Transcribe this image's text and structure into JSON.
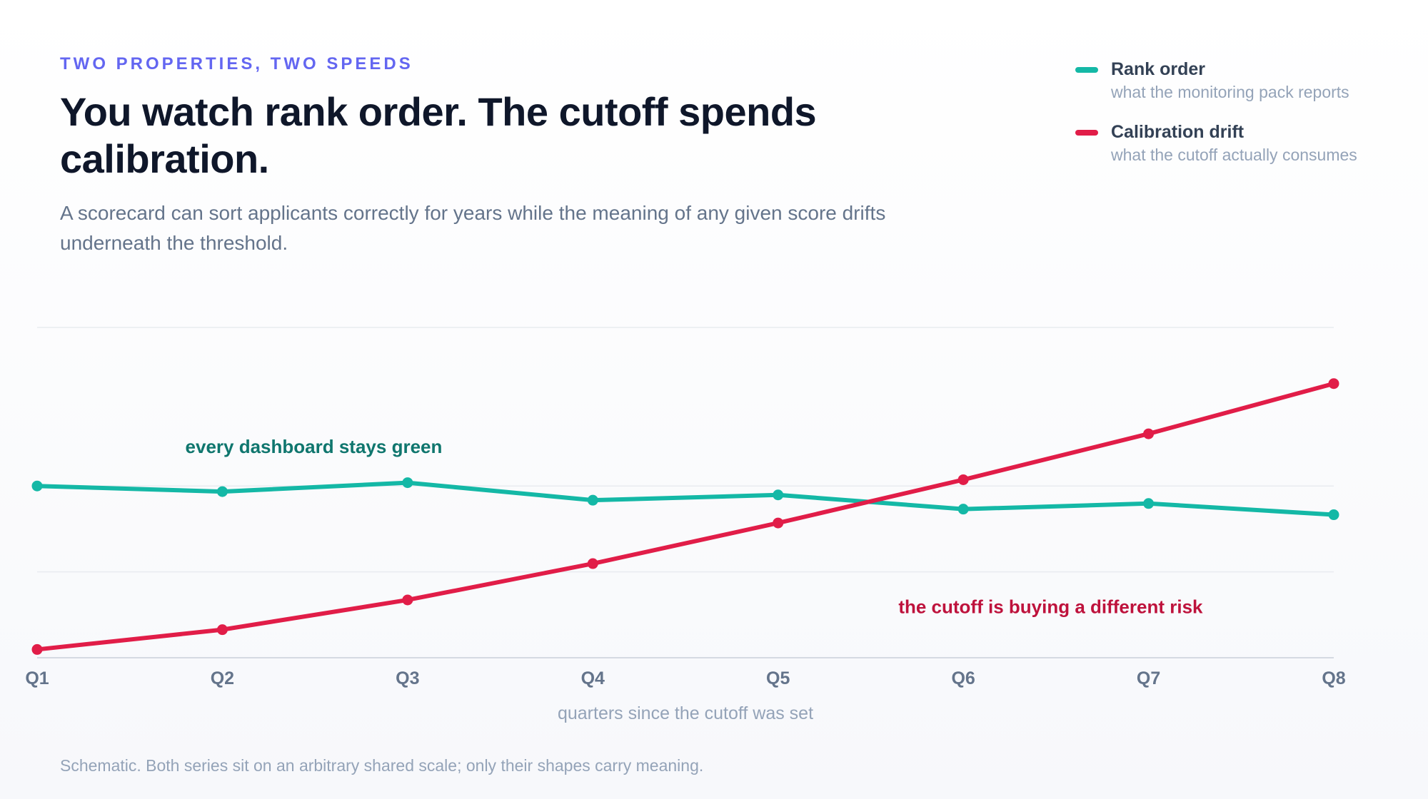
{
  "header": {
    "eyebrow": "TWO PROPERTIES, TWO SPEEDS",
    "title": "You watch rank order. The cutoff spends calibration.",
    "subtitle": "A scorecard can sort applicants correctly for years while the meaning of any given score drifts underneath the threshold."
  },
  "legend": [
    {
      "name": "Rank order",
      "desc": "what the monitoring pack reports",
      "color": "#14b8a6"
    },
    {
      "name": "Calibration drift",
      "desc": "what the cutoff actually consumes",
      "color": "#e11d48"
    }
  ],
  "footnote": "Schematic. Both series sit on an arbitrary shared scale; only their shapes carry meaning.",
  "chart_data": {
    "type": "line",
    "categories": [
      "Q1",
      "Q2",
      "Q3",
      "Q4",
      "Q5",
      "Q6",
      "Q7",
      "Q8"
    ],
    "xlabel": "quarters since the cutoff was set",
    "ylabel": "",
    "ylim": [
      0,
      100
    ],
    "grid": true,
    "legend_position": "top-right",
    "series": [
      {
        "name": "Rank order",
        "color": "#14b8a6",
        "values": [
          52,
          50.3,
          53,
          47.7,
          49.3,
          45,
          46.7,
          43.3
        ]
      },
      {
        "name": "Calibration drift",
        "color": "#e11d48",
        "values": [
          2.5,
          8.5,
          17.5,
          28.5,
          40.8,
          53.9,
          67.8,
          83
        ]
      }
    ],
    "annotations": [
      {
        "text": "every dashboard stays green",
        "x": "Q1.8",
        "y": 62,
        "color": "#0f766e"
      },
      {
        "text": "the cutoff is buying a different risk",
        "x": "Q5.65",
        "y": 13.5,
        "color": "#be123c"
      }
    ]
  }
}
